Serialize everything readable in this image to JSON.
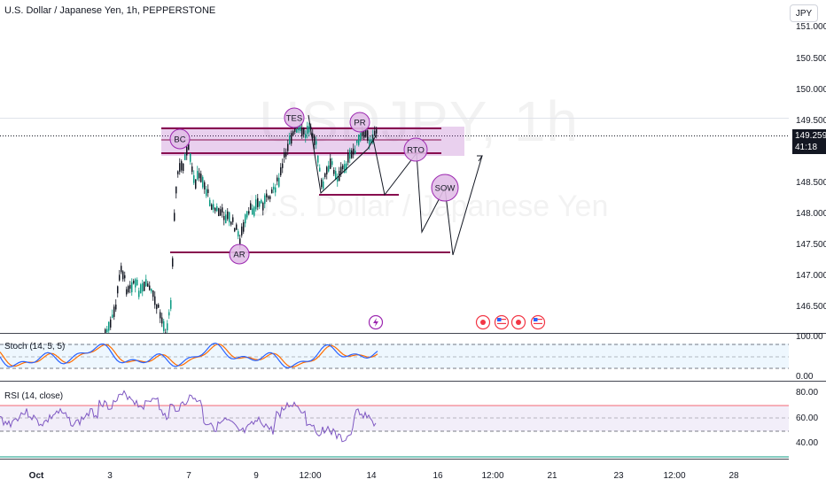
{
  "header": {
    "symbol_title": "U.S. Dollar / Japanese Yen, 1h, PEPPERSTONE",
    "currency_button": "JPY"
  },
  "watermark": {
    "ticker": "USDJPY, 1h",
    "name": "U.S. Dollar / Japanese Yen"
  },
  "price_axis": {
    "labels": [
      "151.000",
      "150.500",
      "150.000",
      "149.500",
      "148.500",
      "148.000",
      "147.500",
      "147.000",
      "146.500"
    ],
    "current_price": "149.259",
    "countdown": "41:18"
  },
  "time_axis": {
    "labels": [
      "Oct",
      "3",
      "7",
      "9",
      "12:00",
      "14",
      "16",
      "12:00",
      "21",
      "23",
      "12:00",
      "28"
    ]
  },
  "annotations": {
    "labels": [
      "TES",
      "PR",
      "BC",
      "RTO",
      "SOW",
      "AR"
    ],
    "highlight_color": "#9c27b0",
    "line_color": "#880e4f"
  },
  "event_icons": [
    "lightning-icon",
    "event-dot-icon",
    "us-flag-icon",
    "event-dot-icon",
    "us-flag-icon"
  ],
  "stoch": {
    "label": "Stoch (14, 5, 5)",
    "axis": [
      "100.00",
      "0.00"
    ],
    "k_color": "#2962ff",
    "d_color": "#ff6d00"
  },
  "rsi": {
    "label": "RSI (14, close)",
    "axis": [
      "80.00",
      "60.00",
      "40.00"
    ],
    "line_color": "#7e57c2"
  },
  "colors": {
    "up": "#089981",
    "down": "#131722"
  }
}
